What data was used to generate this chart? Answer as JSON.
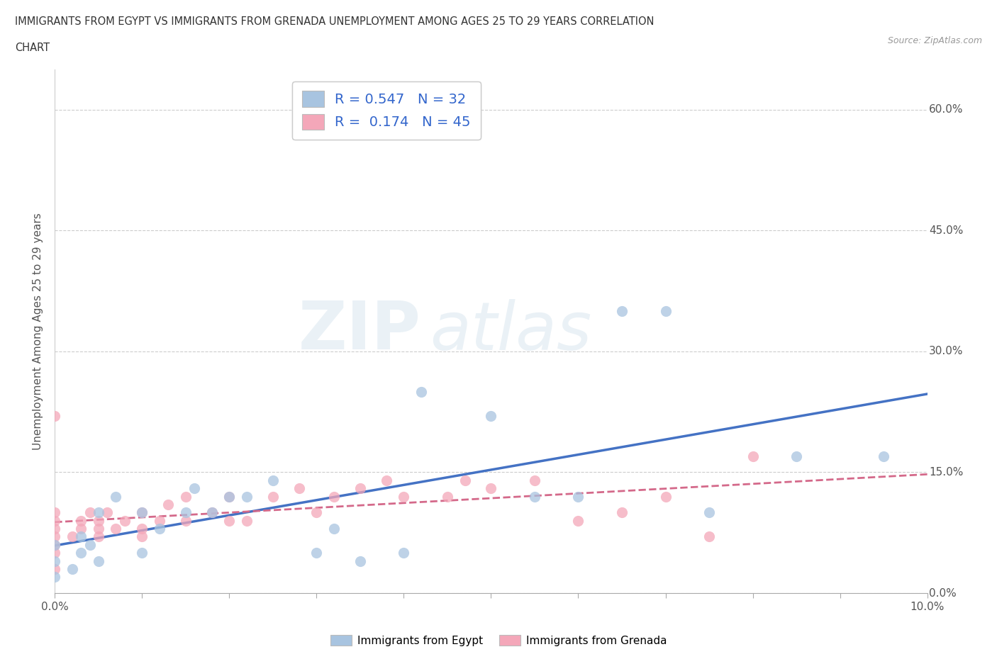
{
  "title_line1": "IMMIGRANTS FROM EGYPT VS IMMIGRANTS FROM GRENADA UNEMPLOYMENT AMONG AGES 25 TO 29 YEARS CORRELATION",
  "title_line2": "CHART",
  "source_text": "Source: ZipAtlas.com",
  "ylabel": "Unemployment Among Ages 25 to 29 years",
  "xlim": [
    0.0,
    0.1
  ],
  "ylim": [
    0.0,
    0.65
  ],
  "ytick_vals": [
    0.0,
    0.15,
    0.3,
    0.45,
    0.6
  ],
  "ytick_labels": [
    "0.0%",
    "15.0%",
    "30.0%",
    "45.0%",
    "60.0%"
  ],
  "R_egypt": 0.547,
  "N_egypt": 32,
  "R_grenada": 0.174,
  "N_grenada": 45,
  "egypt_color": "#a8c4e0",
  "grenada_color": "#f4a7b9",
  "trendline_egypt_color": "#4472c4",
  "trendline_grenada_color": "#d4698a",
  "watermark_zip": "ZIP",
  "watermark_atlas": "atlas",
  "egypt_scatter_x": [
    0.0,
    0.0,
    0.0,
    0.002,
    0.003,
    0.003,
    0.004,
    0.005,
    0.005,
    0.007,
    0.01,
    0.01,
    0.012,
    0.015,
    0.016,
    0.018,
    0.02,
    0.022,
    0.025,
    0.03,
    0.032,
    0.035,
    0.04,
    0.042,
    0.05,
    0.055,
    0.06,
    0.065,
    0.07,
    0.075,
    0.085,
    0.095
  ],
  "egypt_scatter_y": [
    0.02,
    0.04,
    0.06,
    0.03,
    0.05,
    0.07,
    0.06,
    0.04,
    0.1,
    0.12,
    0.05,
    0.1,
    0.08,
    0.1,
    0.13,
    0.1,
    0.12,
    0.12,
    0.14,
    0.05,
    0.08,
    0.04,
    0.05,
    0.25,
    0.22,
    0.12,
    0.12,
    0.35,
    0.35,
    0.1,
    0.17,
    0.17
  ],
  "grenada_scatter_x": [
    0.0,
    0.0,
    0.0,
    0.0,
    0.0,
    0.0,
    0.0,
    0.0,
    0.002,
    0.003,
    0.003,
    0.004,
    0.005,
    0.005,
    0.005,
    0.006,
    0.007,
    0.008,
    0.01,
    0.01,
    0.01,
    0.012,
    0.013,
    0.015,
    0.015,
    0.018,
    0.02,
    0.02,
    0.022,
    0.025,
    0.028,
    0.03,
    0.032,
    0.035,
    0.038,
    0.04,
    0.045,
    0.047,
    0.05,
    0.055,
    0.06,
    0.065,
    0.07,
    0.075,
    0.08
  ],
  "grenada_scatter_y": [
    0.03,
    0.05,
    0.06,
    0.07,
    0.08,
    0.09,
    0.1,
    0.22,
    0.07,
    0.08,
    0.09,
    0.1,
    0.07,
    0.08,
    0.09,
    0.1,
    0.08,
    0.09,
    0.07,
    0.08,
    0.1,
    0.09,
    0.11,
    0.09,
    0.12,
    0.1,
    0.09,
    0.12,
    0.09,
    0.12,
    0.13,
    0.1,
    0.12,
    0.13,
    0.14,
    0.12,
    0.12,
    0.14,
    0.13,
    0.14,
    0.09,
    0.1,
    0.12,
    0.07,
    0.17
  ],
  "background_color": "#ffffff",
  "grid_color": "#cccccc",
  "legend_label_egypt": "Immigrants from Egypt",
  "legend_label_grenada": "Immigrants from Grenada"
}
